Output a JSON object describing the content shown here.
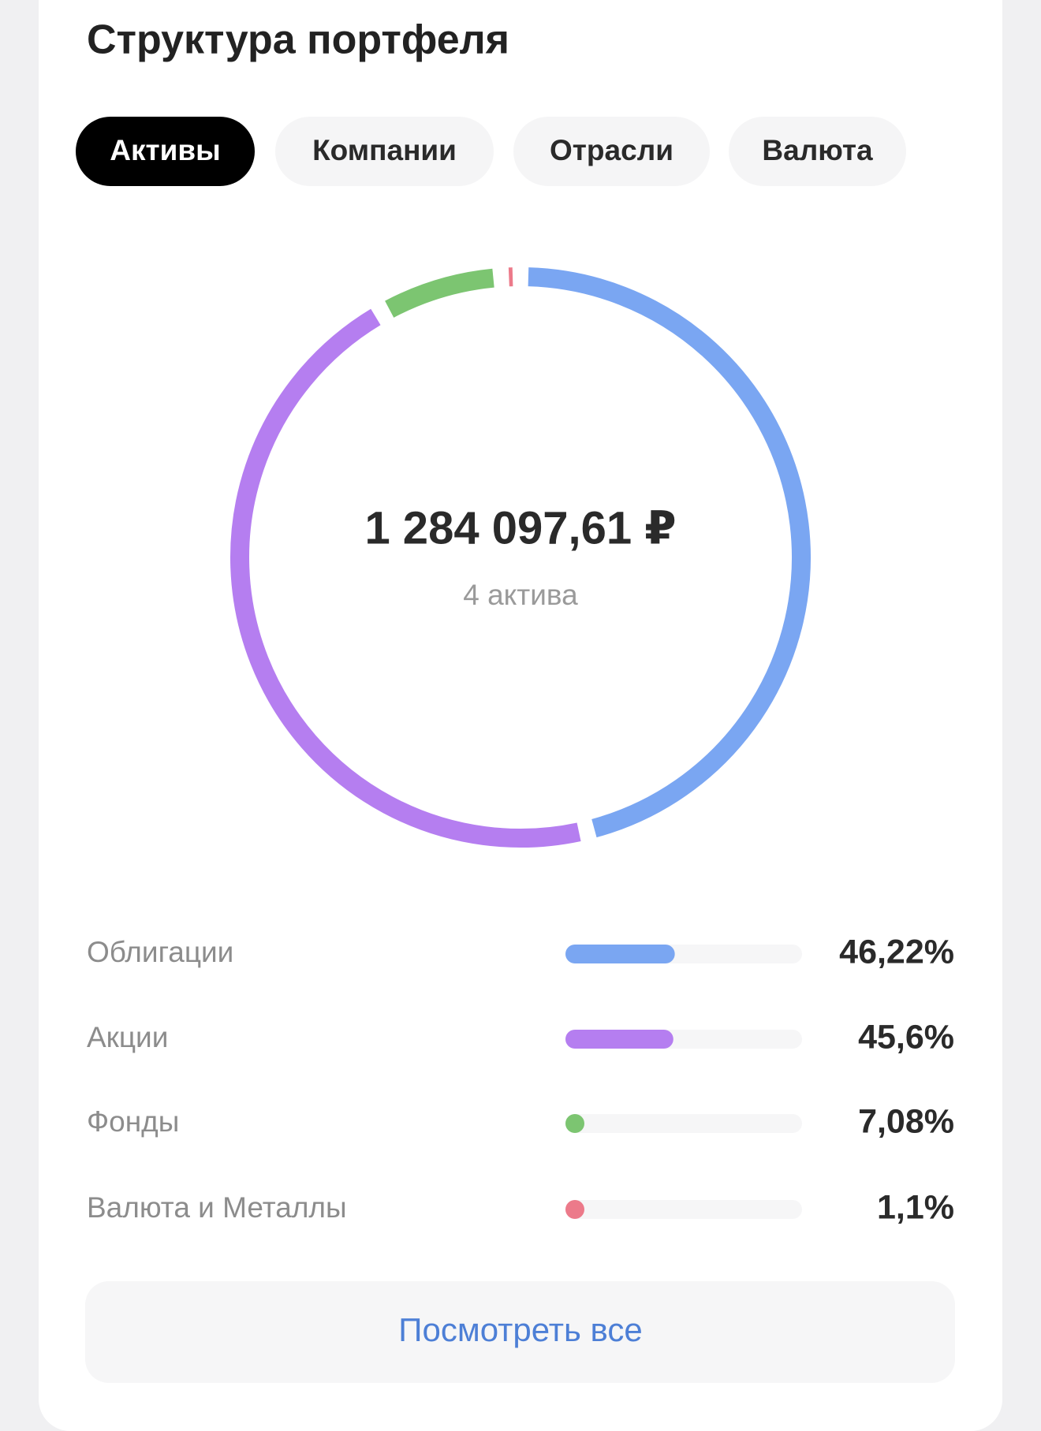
{
  "header": {
    "title": "Структура портфеля"
  },
  "tabs": [
    "Активы",
    "Компании",
    "Отрасли",
    "Валюта"
  ],
  "chart_data": {
    "type": "donut",
    "total": "1 284 097,61 ₽",
    "subtitle": "4 актива",
    "categories": [
      "Облигации",
      "Акции",
      "Фонды",
      "Валюта и Металлы"
    ],
    "values": [
      46.22,
      45.6,
      7.08,
      1.1
    ],
    "value_labels": [
      "46,22%",
      "45,6%",
      "7,08%",
      "1,1%"
    ],
    "colors": [
      "#7aa6f2",
      "#b57ef0",
      "#7cc571",
      "#ec7a8a"
    ]
  },
  "button": "Посмотреть все"
}
